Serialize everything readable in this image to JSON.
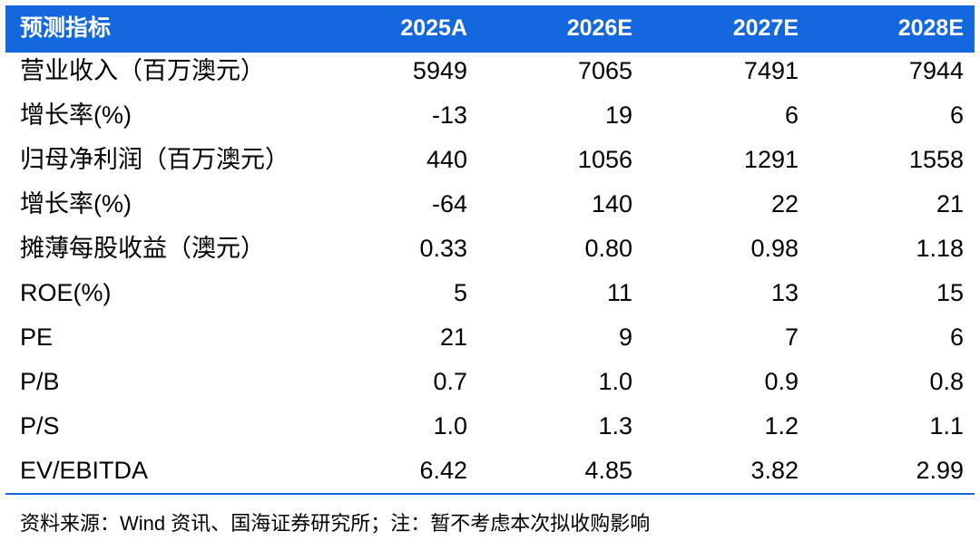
{
  "table": {
    "header": [
      "预测指标",
      "2025A",
      "2026E",
      "2027E",
      "2028E"
    ],
    "rows": [
      [
        "营业收入（百万澳元）",
        "5949",
        "7065",
        "7491",
        "7944"
      ],
      [
        "增长率(%)",
        "-13",
        "19",
        "6",
        "6"
      ],
      [
        "归母净利润（百万澳元）",
        "440",
        "1056",
        "1291",
        "1558"
      ],
      [
        "增长率(%)",
        "-64",
        "140",
        "22",
        "21"
      ],
      [
        "摊薄每股收益（澳元）",
        "0.33",
        "0.80",
        "0.98",
        "1.18"
      ],
      [
        "ROE(%)",
        "5",
        "11",
        "13",
        "15"
      ],
      [
        "PE",
        "21",
        "9",
        "7",
        "6"
      ],
      [
        "P/B",
        "0.7",
        "1.0",
        "0.9",
        "0.8"
      ],
      [
        "P/S",
        "1.0",
        "1.3",
        "1.2",
        "1.1"
      ],
      [
        "EV/EBITDA",
        "6.42",
        "4.85",
        "3.82",
        "2.99"
      ]
    ]
  },
  "footer": {
    "source": "资料来源：Wind 资讯、国海证券研究所；注：暂不考虑本次拟收购影响"
  }
}
